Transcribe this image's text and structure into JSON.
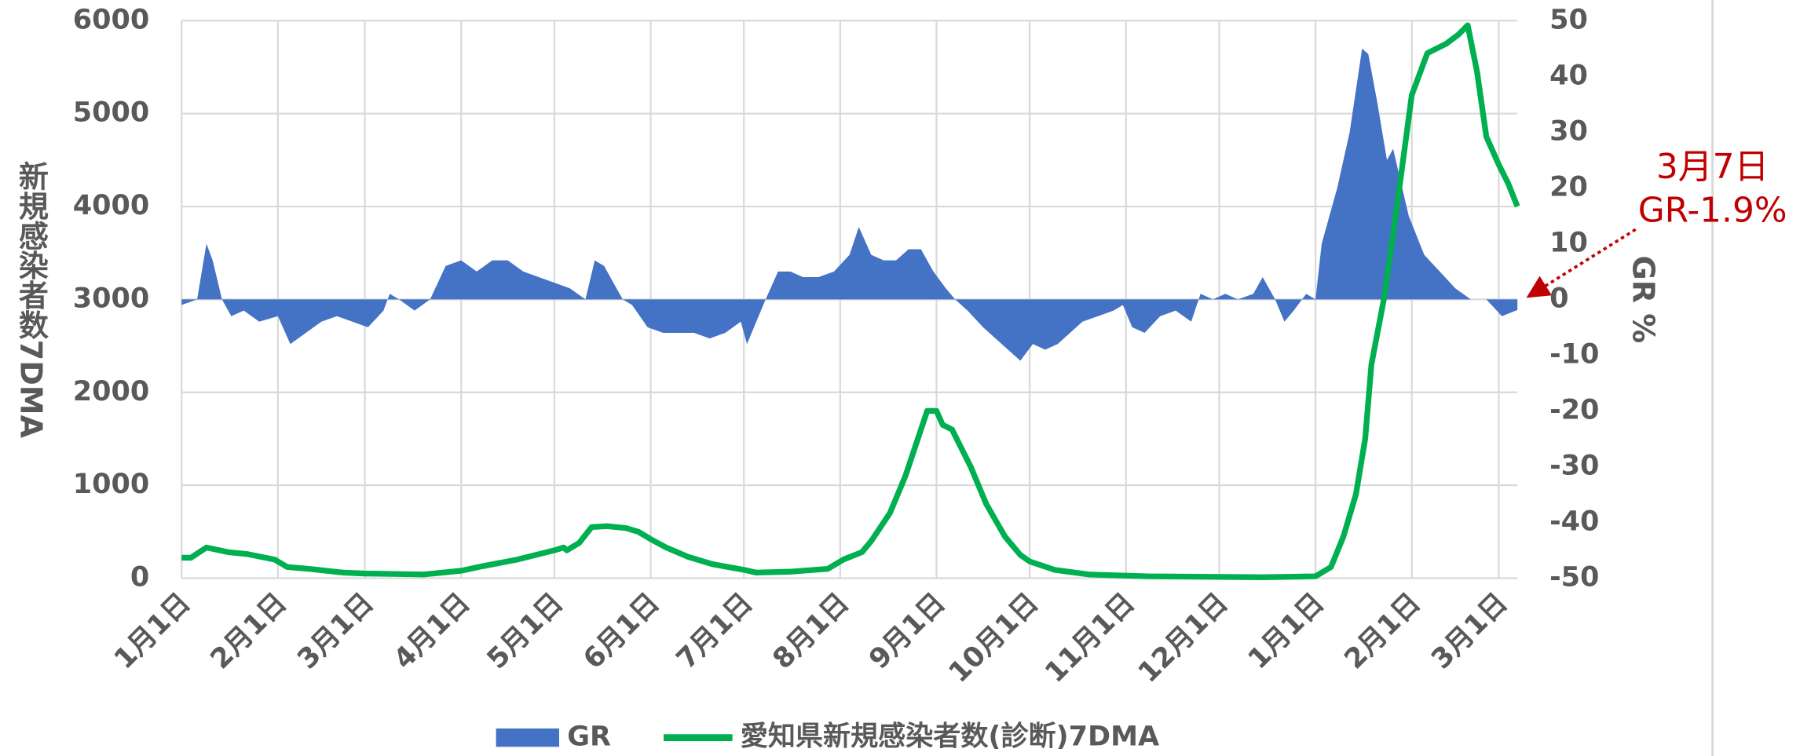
{
  "chart_data": {
    "type": "combo",
    "y_label": "新規感染者数7DMA",
    "y2_label": "GR %",
    "annotations": [
      "3月7日",
      "GR-1.9%"
    ],
    "xlim": [
      0,
      430
    ],
    "xticks": [
      {
        "value": 0,
        "label": "1月1日"
      },
      {
        "value": 31,
        "label": "2月1日"
      },
      {
        "value": 59,
        "label": "3月1日"
      },
      {
        "value": 90,
        "label": "4月1日"
      },
      {
        "value": 120,
        "label": "5月1日"
      },
      {
        "value": 151,
        "label": "6月1日"
      },
      {
        "value": 181,
        "label": "7月1日"
      },
      {
        "value": 212,
        "label": "8月1日"
      },
      {
        "value": 243,
        "label": "9月1日"
      },
      {
        "value": 273,
        "label": "10月1日"
      },
      {
        "value": 304,
        "label": "11月1日"
      },
      {
        "value": 334,
        "label": "12月1日"
      },
      {
        "value": 365,
        "label": "1月1日"
      },
      {
        "value": 396,
        "label": "2月1日"
      },
      {
        "value": 424,
        "label": "3月1日"
      }
    ],
    "ylim": [
      0,
      6000
    ],
    "yticks": [
      0,
      1000,
      2000,
      3000,
      4000,
      5000,
      6000
    ],
    "y2lim": [
      -50,
      50
    ],
    "y2ticks": [
      -50,
      -40,
      -30,
      -20,
      -10,
      0,
      10,
      20,
      30,
      40,
      50
    ],
    "grid": true,
    "legend": "bottom",
    "series": [
      {
        "name": "GR",
        "type": "area",
        "axis": "y2",
        "color": "#4472c4",
        "x": [
          0,
          5,
          8,
          10,
          13,
          16,
          20,
          25,
          31,
          35,
          40,
          45,
          50,
          55,
          60,
          65,
          67,
          70,
          75,
          80,
          85,
          90,
          95,
          100,
          105,
          110,
          115,
          120,
          125,
          130,
          133,
          136,
          140,
          142,
          145,
          150,
          155,
          160,
          165,
          170,
          175,
          180,
          182,
          185,
          188,
          192,
          196,
          200,
          205,
          210,
          215,
          218,
          222,
          226,
          230,
          234,
          238,
          242,
          246,
          249,
          253,
          258,
          262,
          266,
          270,
          274,
          278,
          282,
          286,
          290,
          295,
          300,
          303,
          306,
          310,
          315,
          320,
          325,
          328,
          332,
          336,
          340,
          345,
          348,
          352,
          355,
          358,
          362,
          365,
          367,
          372,
          376,
          380,
          382,
          385,
          388,
          390,
          395,
          400,
          405,
          410,
          415,
          420,
          425,
          430
        ],
        "values": [
          -1,
          0,
          10,
          7,
          0,
          -3,
          -2,
          -4,
          -3,
          -8,
          -6,
          -4,
          -3,
          -4,
          -5,
          -2,
          1,
          0,
          -2,
          0,
          6,
          7,
          5,
          7,
          7,
          5,
          4,
          3,
          2,
          0,
          7,
          6,
          2,
          0,
          -1,
          -5,
          -6,
          -6,
          -6,
          -7,
          -6,
          -4,
          -8,
          -4,
          0,
          5,
          5,
          4,
          4,
          5,
          8,
          13,
          8,
          7,
          7,
          9,
          9,
          5,
          2,
          0,
          -2,
          -5,
          -7,
          -9,
          -11,
          -8,
          -9,
          -8,
          -6,
          -4,
          -3,
          -2,
          -1,
          -5,
          -6,
          -3,
          -2,
          -4,
          1,
          0,
          1,
          0,
          1,
          4,
          0,
          -4,
          -2,
          1,
          0,
          10,
          20,
          30,
          45,
          44,
          35,
          25,
          27,
          15,
          8,
          5,
          2,
          0,
          0,
          -3,
          -1.9
        ]
      },
      {
        "name": "愛知県新規感染者数(診断)7DMA",
        "type": "line",
        "color": "#00b050",
        "x": [
          0,
          3,
          8,
          15,
          21,
          30,
          34,
          41,
          52,
          59,
          78,
          90,
          97,
          108,
          120,
          123,
          124,
          128,
          132,
          137,
          143,
          147,
          151,
          156,
          163,
          171,
          181,
          185,
          196,
          208,
          213,
          219,
          222,
          228,
          233,
          237,
          240,
          243,
          245,
          248,
          254,
          259,
          265,
          270,
          273,
          281,
          292,
          311,
          348,
          365,
          370,
          374,
          378,
          381,
          383,
          387,
          390,
          396,
          401,
          407,
          411,
          414,
          417,
          420,
          424,
          427,
          430
        ],
        "values": [
          220,
          220,
          330,
          280,
          260,
          200,
          120,
          100,
          60,
          50,
          40,
          80,
          130,
          200,
          300,
          330,
          300,
          380,
          550,
          560,
          540,
          500,
          420,
          330,
          230,
          150,
          90,
          60,
          70,
          100,
          200,
          280,
          400,
          700,
          1100,
          1500,
          1800,
          1800,
          1650,
          1600,
          1200,
          800,
          450,
          250,
          180,
          90,
          40,
          20,
          10,
          20,
          120,
          450,
          900,
          1500,
          2300,
          3000,
          3700,
          5200,
          5650,
          5750,
          5850,
          5950,
          5450,
          4750,
          4450,
          4250,
          4000
        ]
      }
    ]
  }
}
